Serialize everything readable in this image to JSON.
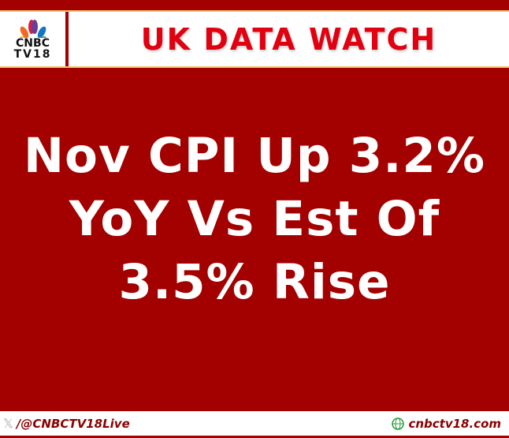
{
  "header": {
    "logo_line1": "CNBC",
    "logo_line2": "TV18",
    "title": "UK DATA WATCH"
  },
  "headline": {
    "lines": [
      "Nov CPI Up 3.2%",
      "YoY Vs Est Of",
      "3.5% Rise"
    ]
  },
  "footer": {
    "x_handle": "/@CNBCTV18Live",
    "website": "cnbctv18.com",
    "x_icon": "x-logo-icon",
    "web_icon": "www-globe-icon"
  },
  "colors": {
    "background": "#a30000",
    "title": "#e00010",
    "accent": "#f4c46a"
  }
}
